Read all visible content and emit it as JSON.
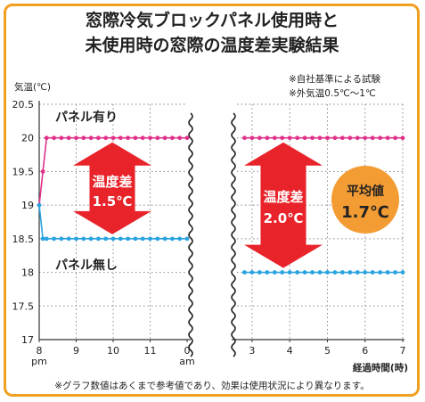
{
  "title": {
    "line1": "窓際冷気ブロックパネル使用時と",
    "line2": "未使用時の窓際の温度差実験結果"
  },
  "notes": [
    "※自社基準による試験",
    "※外気温0.5℃〜1℃"
  ],
  "footnote": "※グラフ数値はあくまで参考値であり、効果は使用状況により異なります。",
  "chart_data": {
    "type": "line",
    "ylabel": "気温(℃)",
    "xlabel": "経過時間(時)",
    "ylim": [
      17,
      20.5
    ],
    "yticks": [
      "17",
      "17.5",
      "18",
      "18.5",
      "19",
      "19.5",
      "20",
      "20.5"
    ],
    "ytick_values": [
      17,
      17.5,
      18,
      18.5,
      19,
      19.5,
      20,
      20.5
    ],
    "grid": true,
    "left_panel": {
      "xticks": [
        "8",
        "9",
        "10",
        "11",
        "0"
      ],
      "xtick_values": [
        8,
        9,
        10,
        11,
        12
      ],
      "xtick_sublabels": {
        "8": "pm",
        "0": "am"
      },
      "xlim": [
        8,
        12
      ],
      "series": [
        {
          "name": "パネル有り",
          "color": "#e0308a",
          "points": [
            [
              8,
              19
            ],
            [
              8.1,
              19.5
            ],
            [
              8.2,
              20
            ],
            [
              8.4,
              20
            ],
            [
              8.6,
              20
            ],
            [
              8.8,
              20
            ],
            [
              9,
              20
            ],
            [
              9.2,
              20
            ],
            [
              9.4,
              20
            ],
            [
              9.6,
              20
            ],
            [
              9.8,
              20
            ],
            [
              10,
              20
            ],
            [
              10.2,
              20
            ],
            [
              10.4,
              20
            ],
            [
              10.6,
              20
            ],
            [
              10.8,
              20
            ],
            [
              11,
              20
            ],
            [
              11.2,
              20
            ],
            [
              11.4,
              20
            ],
            [
              11.6,
              20
            ],
            [
              11.8,
              20
            ],
            [
              12,
              20
            ]
          ]
        },
        {
          "name": "パネル無し",
          "color": "#29a3e0",
          "points": [
            [
              8,
              19
            ],
            [
              8.1,
              18.5
            ],
            [
              8.2,
              18.5
            ],
            [
              8.4,
              18.5
            ],
            [
              8.6,
              18.5
            ],
            [
              8.8,
              18.5
            ],
            [
              9,
              18.5
            ],
            [
              9.2,
              18.5
            ],
            [
              9.4,
              18.5
            ],
            [
              9.6,
              18.5
            ],
            [
              9.8,
              18.5
            ],
            [
              10,
              18.5
            ],
            [
              10.2,
              18.5
            ],
            [
              10.4,
              18.5
            ],
            [
              10.6,
              18.5
            ],
            [
              10.8,
              18.5
            ],
            [
              11,
              18.5
            ],
            [
              11.2,
              18.5
            ],
            [
              11.4,
              18.5
            ],
            [
              11.6,
              18.5
            ],
            [
              11.8,
              18.5
            ],
            [
              12,
              18.5
            ]
          ]
        }
      ],
      "difference": {
        "label": "温度差",
        "value": "1.5℃"
      }
    },
    "right_panel": {
      "xticks": [
        "3",
        "4",
        "5",
        "6",
        "7"
      ],
      "xtick_values": [
        3,
        4,
        5,
        6,
        7
      ],
      "xlim": [
        2.6,
        7
      ],
      "series": [
        {
          "name": "パネル有り",
          "color": "#e0308a",
          "points": [
            [
              2.8,
              20
            ],
            [
              3,
              20
            ],
            [
              3.2,
              20
            ],
            [
              3.4,
              20
            ],
            [
              3.6,
              20
            ],
            [
              3.8,
              20
            ],
            [
              4,
              20
            ],
            [
              4.2,
              20
            ],
            [
              4.4,
              20
            ],
            [
              4.6,
              20
            ],
            [
              4.8,
              20
            ],
            [
              5,
              20
            ],
            [
              5.2,
              20
            ],
            [
              5.4,
              20
            ],
            [
              5.6,
              20
            ],
            [
              5.8,
              20
            ],
            [
              6,
              20
            ],
            [
              6.2,
              20
            ],
            [
              6.4,
              20
            ],
            [
              6.6,
              20
            ],
            [
              6.8,
              20
            ],
            [
              7,
              20
            ]
          ]
        },
        {
          "name": "パネル無し",
          "color": "#29a3e0",
          "points": [
            [
              2.8,
              18
            ],
            [
              3,
              18
            ],
            [
              3.2,
              18
            ],
            [
              3.4,
              18
            ],
            [
              3.6,
              18
            ],
            [
              3.8,
              18
            ],
            [
              4,
              18
            ],
            [
              4.2,
              18
            ],
            [
              4.4,
              18
            ],
            [
              4.6,
              18
            ],
            [
              4.8,
              18
            ],
            [
              5,
              18
            ],
            [
              5.2,
              18
            ],
            [
              5.4,
              18
            ],
            [
              5.6,
              18
            ],
            [
              5.8,
              18
            ],
            [
              6,
              18
            ],
            [
              6.2,
              18
            ],
            [
              6.4,
              18
            ],
            [
              6.6,
              18
            ],
            [
              6.8,
              18
            ],
            [
              7,
              18
            ]
          ]
        }
      ],
      "difference": {
        "label": "温度差",
        "value": "2.0℃"
      }
    },
    "average": {
      "label": "平均値",
      "value": "1.7℃",
      "color": "#f39c33"
    },
    "arrow_color": "#e8242a"
  }
}
